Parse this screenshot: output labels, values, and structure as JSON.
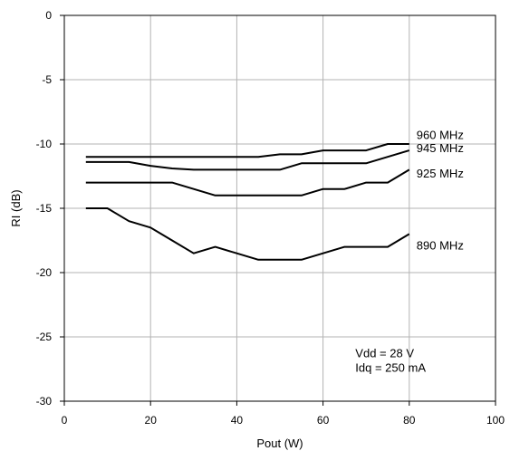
{
  "chart_data": {
    "type": "line",
    "title": "",
    "xlabel": "Pout (W)",
    "ylabel": "RI (dB)",
    "xlim": [
      0,
      100
    ],
    "ylim": [
      -30,
      0
    ],
    "xticks": [
      0,
      20,
      40,
      60,
      80,
      100
    ],
    "yticks": [
      0,
      -5,
      -10,
      -15,
      -20,
      -25,
      -30
    ],
    "grid": true,
    "legend": "inline labels at right end of lines",
    "series": [
      {
        "name": "960 MHz",
        "x": [
          5,
          10,
          15,
          20,
          25,
          30,
          35,
          40,
          45,
          50,
          55,
          60,
          65,
          70,
          75,
          80
        ],
        "y": [
          -11,
          -11,
          -11,
          -11,
          -11,
          -11,
          -11,
          -11,
          -11,
          -10.8,
          -10.8,
          -10.5,
          -10.5,
          -10.5,
          -10,
          -10
        ]
      },
      {
        "name": "945 MHz",
        "x": [
          5,
          10,
          15,
          20,
          25,
          30,
          35,
          40,
          45,
          50,
          55,
          60,
          65,
          70,
          75,
          80
        ],
        "y": [
          -11.4,
          -11.4,
          -11.4,
          -11.7,
          -11.9,
          -12,
          -12,
          -12,
          -12,
          -12,
          -11.5,
          -11.5,
          -11.5,
          -11.5,
          -11,
          -10.5
        ]
      },
      {
        "name": "925 MHz",
        "x": [
          5,
          10,
          15,
          20,
          25,
          30,
          35,
          40,
          45,
          50,
          55,
          60,
          65,
          70,
          75,
          80
        ],
        "y": [
          -13,
          -13,
          -13,
          -13,
          -13,
          -13.5,
          -14,
          -14,
          -14,
          -14,
          -14,
          -13.5,
          -13.5,
          -13,
          -13,
          -12
        ]
      },
      {
        "name": "890 MHz",
        "x": [
          5,
          10,
          15,
          20,
          25,
          30,
          35,
          40,
          45,
          50,
          55,
          60,
          65,
          70,
          75,
          80
        ],
        "y": [
          -15,
          -15,
          -16,
          -16.5,
          -17.5,
          -18.5,
          -18,
          -18.5,
          -19,
          -19,
          -19,
          -18.5,
          -18,
          -18,
          -18,
          -17
        ]
      }
    ],
    "annotations": [
      "Vdd = 28 V",
      "Idq = 250 mA"
    ]
  }
}
